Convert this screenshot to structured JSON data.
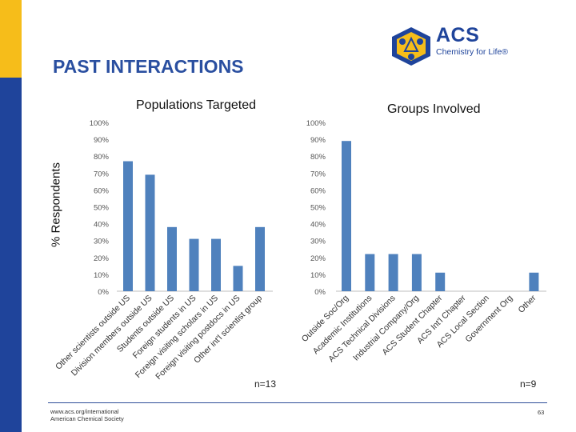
{
  "slide": {
    "title": "PAST INTERACTIONS",
    "logo_text": "ACS",
    "logo_tagline": "Chemistry for Life®",
    "footer_lines": [
      "www.acs.org/international",
      "American Chemical Society"
    ],
    "page_number": "63"
  },
  "colors": {
    "sidebar_gold": "#f6bd1a",
    "sidebar_blue": "#1f449b",
    "title_color": "#2a4fa0",
    "logo_blue": "#1f449b",
    "logo_gold": "#f6bd1a",
    "bar_color": "#4f81bd",
    "tick_color": "#555555"
  },
  "shared": {
    "ylabel": "% Respondents"
  },
  "chart_data": [
    {
      "type": "bar",
      "title": "Populations Targeted",
      "ylabel": "% Respondents",
      "xlabel": "",
      "ylim": [
        0,
        100
      ],
      "ytick_labels": [
        "0%",
        "10%",
        "20%",
        "30%",
        "40%",
        "50%",
        "60%",
        "70%",
        "80%",
        "90%",
        "100%"
      ],
      "categories": [
        "Other scientists outside US",
        "Division members outside US",
        "Students outside US",
        "Foreign students in US",
        "Foreign visiting scholars in US",
        "Foreign visiting postdocs in US",
        "Other int'l scientist group"
      ],
      "values": [
        77,
        69,
        38,
        31,
        31,
        15,
        38
      ],
      "n_label": "n=13",
      "grid": false,
      "legend": "none"
    },
    {
      "type": "bar",
      "title": "Groups Involved",
      "ylabel": "",
      "xlabel": "",
      "ylim": [
        0,
        100
      ],
      "ytick_labels": [
        "0%",
        "10%",
        "20%",
        "30%",
        "40%",
        "50%",
        "60%",
        "70%",
        "80%",
        "90%",
        "100%"
      ],
      "categories": [
        "Outside Soc/Org",
        "Academic Institutions",
        "ACS Technical Divisions",
        "Industrial Company/Org",
        "ACS Student Chapter",
        "ACS Int'l Chapter",
        "ACS Local Section",
        "Government Org",
        "Other"
      ],
      "values": [
        89,
        22,
        22,
        22,
        11,
        0,
        0,
        0,
        11
      ],
      "n_label": "n=9",
      "grid": false,
      "legend": "none"
    }
  ]
}
